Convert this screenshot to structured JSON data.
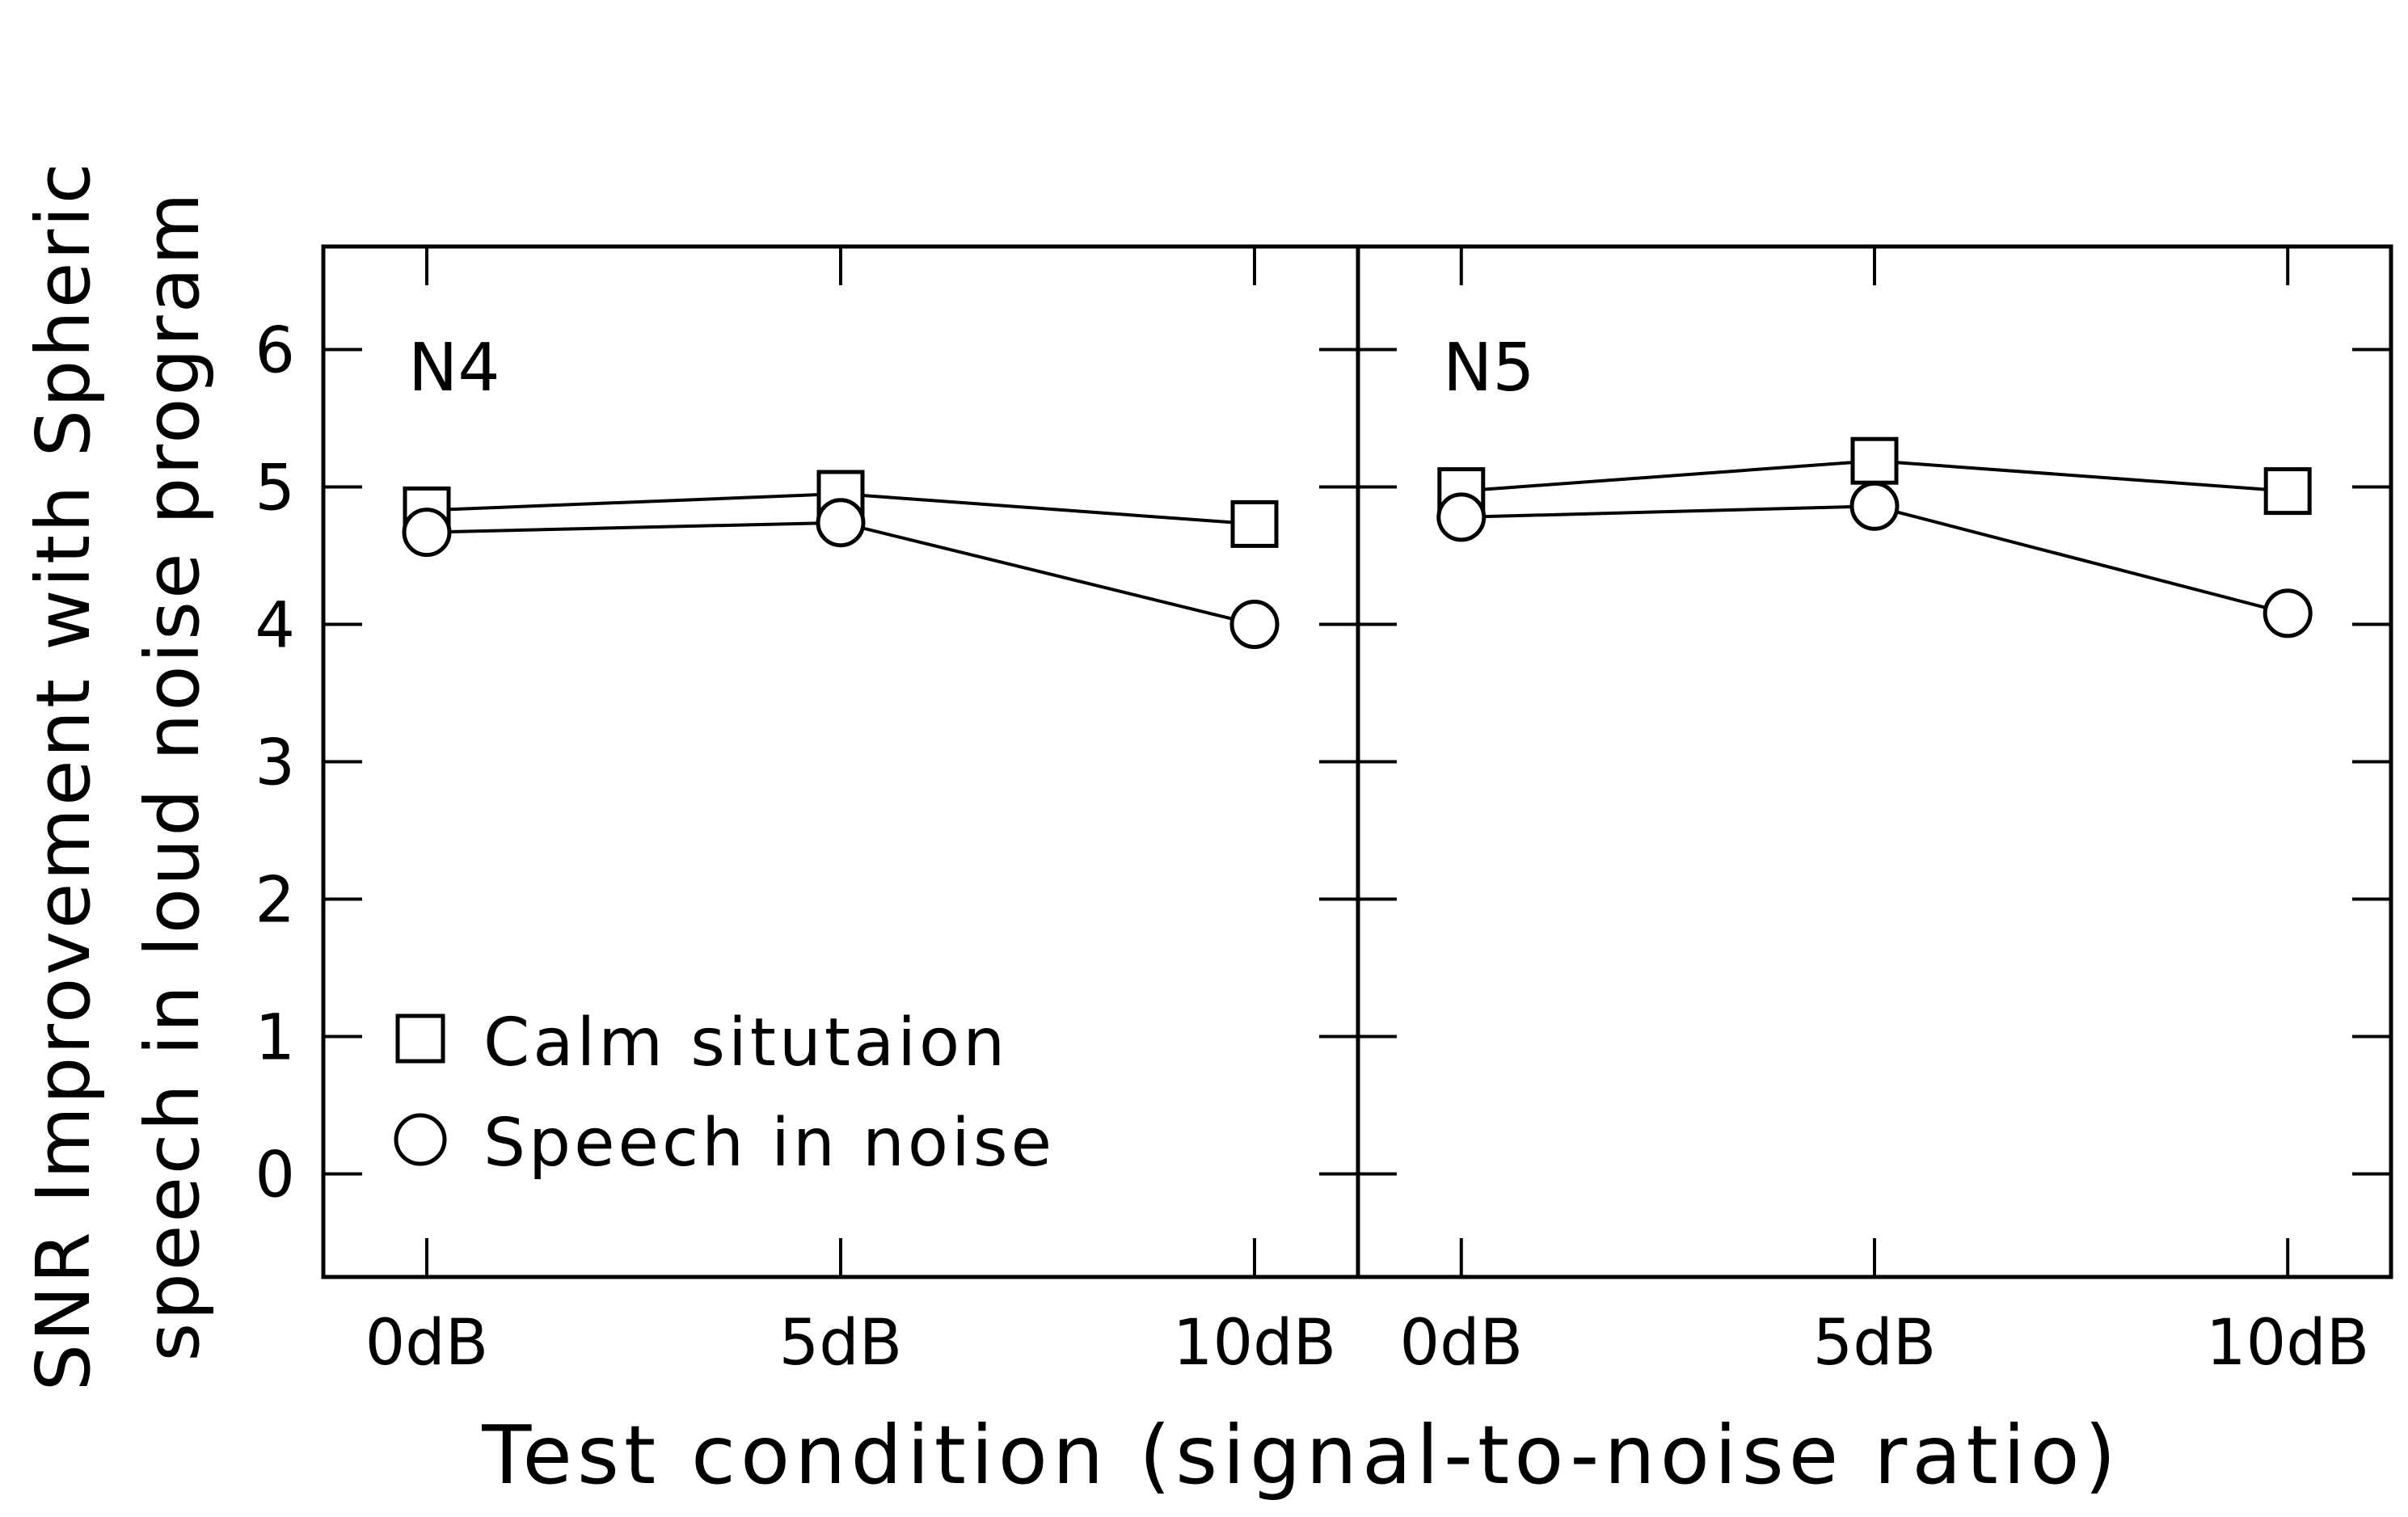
{
  "chart_data": {
    "type": "line",
    "xlabel": "Test condition (signal-to-noise ratio)",
    "ylabel_lines": [
      "SNR Improvement with Spheric",
      "speech in loud noise program"
    ],
    "categories": [
      "0dB",
      "5dB",
      "10dB"
    ],
    "ylim": [
      -0.75,
      6.75
    ],
    "yticks": [
      0,
      1,
      2,
      3,
      4,
      5,
      6
    ],
    "grid": false,
    "legend": {
      "placement": "bottom-left of first panel",
      "entries": [
        {
          "label": "Calm situtaion",
          "marker": "square"
        },
        {
          "label": "Speech in noise",
          "marker": "circle"
        }
      ]
    },
    "panels": [
      {
        "label": "N4",
        "series": [
          {
            "name": "Calm situtaion",
            "marker": "square",
            "values": [
              4.83,
              4.95,
              4.73
            ]
          },
          {
            "name": "Speech in noise",
            "marker": "circle",
            "values": [
              4.67,
              4.74,
              4.0
            ]
          }
        ]
      },
      {
        "label": "N5",
        "series": [
          {
            "name": "Calm situtaion",
            "marker": "square",
            "values": [
              4.97,
              5.19,
              4.97
            ]
          },
          {
            "name": "Speech in noise",
            "marker": "circle",
            "values": [
              4.78,
              4.86,
              4.08
            ]
          }
        ]
      }
    ]
  }
}
